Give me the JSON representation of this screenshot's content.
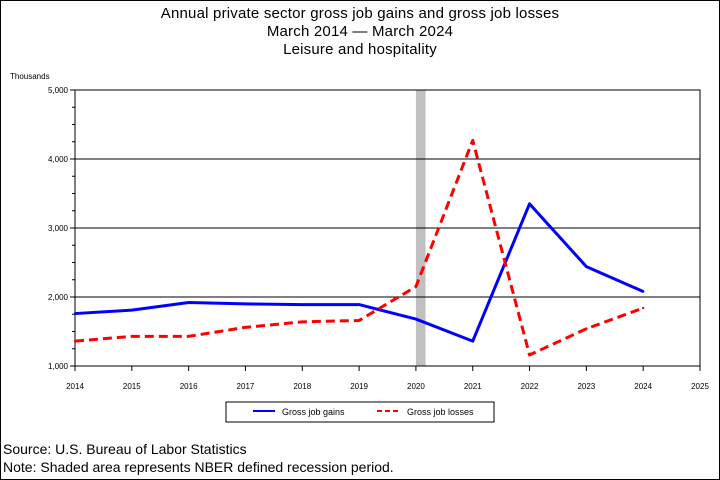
{
  "chart_data": {
    "type": "line",
    "title": "Annual private sector gross job gains and gross job losses",
    "subtitle": "March 2014 — March 2024",
    "industry": "Leisure and hospitality",
    "ylabel": "Thousands",
    "xlabel": "",
    "ylim": [
      1000,
      5000
    ],
    "xlim": [
      2014,
      2025
    ],
    "yticks": [
      "1,000",
      "2,000",
      "3,000",
      "4,000",
      "5,000"
    ],
    "xticks": [
      "2014",
      "2015",
      "2016",
      "2017",
      "2018",
      "2019",
      "2020",
      "2021",
      "2022",
      "2023",
      "2024",
      "2025"
    ],
    "grid": "horizontal",
    "legend_position": "bottom",
    "recession_shading": {
      "start": 2020.0,
      "end": 2020.17,
      "color": "#c0c0c0"
    },
    "series": [
      {
        "name": "Gross job gains",
        "color": "#0000ff",
        "dash": "solid",
        "x": [
          2014,
          2015,
          2016,
          2017,
          2018,
          2019,
          2020,
          2021,
          2022,
          2023,
          2024
        ],
        "values": [
          1760,
          1810,
          1920,
          1900,
          1890,
          1890,
          1680,
          1360,
          3350,
          2440,
          2080
        ]
      },
      {
        "name": "Gross job losses",
        "color": "#ff0000",
        "dash": "dashed",
        "x": [
          2014,
          2015,
          2016,
          2017,
          2018,
          2019,
          2020,
          2021,
          2022,
          2023,
          2024
        ],
        "values": [
          1360,
          1430,
          1430,
          1560,
          1640,
          1660,
          2150,
          4270,
          1160,
          1540,
          1840
        ]
      }
    ]
  },
  "footer": {
    "source": "Source: U.S. Bureau of Labor Statistics",
    "note": "Note: Shaded area represents NBER defined recession period."
  }
}
